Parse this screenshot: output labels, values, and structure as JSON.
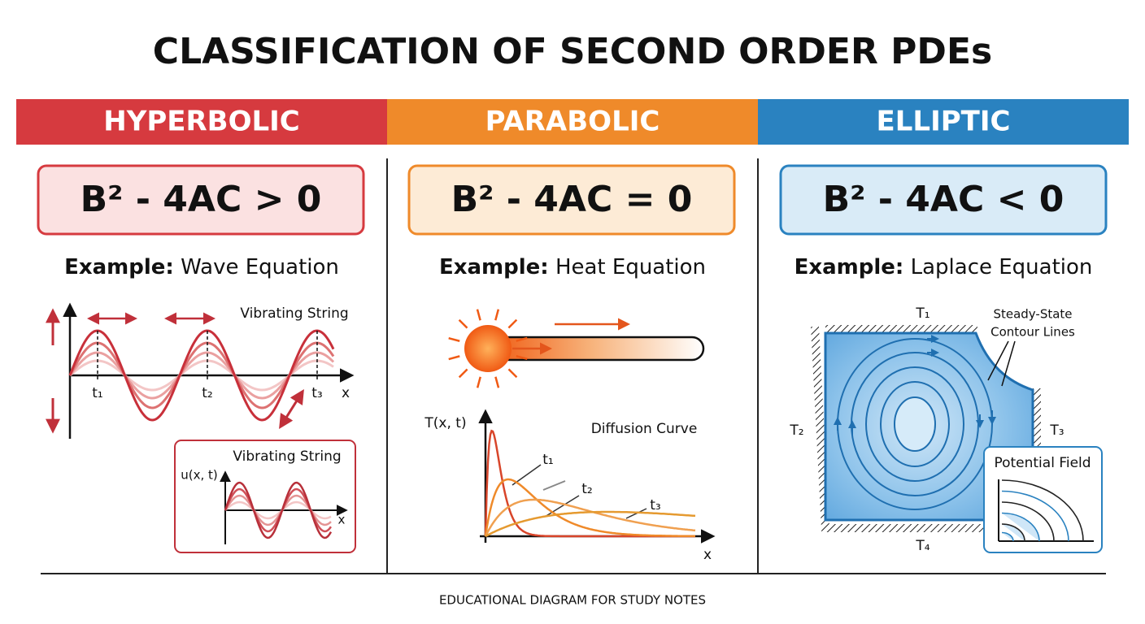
{
  "title": "CLASSIFICATION OF SECOND ORDER PDEs",
  "panels": [
    {
      "heading": "HYPERBOLIC",
      "color": "#d63a3f",
      "condition": "B² - 4AC > 0",
      "example": {
        "label": "Example:",
        "name": "Wave Equation"
      },
      "caption": "Vibrating String",
      "times": [
        "t₁",
        "t₂",
        "t₃"
      ],
      "x_axis": "x",
      "inset": {
        "title": "Vibrating String",
        "y_axis": "u(x, t)",
        "x_axis": "x"
      }
    },
    {
      "heading": "PARABOLIC",
      "color": "#ef8a2a",
      "condition": "B² - 4AC = 0",
      "example": {
        "label": "Example:",
        "name": "Heat Equation"
      },
      "caption": "Diffusion Curve",
      "y_axis": "T(x, t)",
      "times": [
        "t₁",
        "t₂",
        "t₃"
      ],
      "x_axis": "x"
    },
    {
      "heading": "ELLIPTIC",
      "color": "#2a82c0",
      "condition": "B² - 4AC < 0",
      "example": {
        "label": "Example:",
        "name": "Laplace Equation"
      },
      "boundaries": [
        "T₁",
        "T₂",
        "T₃",
        "T₄"
      ],
      "caption": [
        "Steady-State",
        "Contour Lines"
      ],
      "inset": {
        "title": "Potential Field"
      }
    }
  ],
  "footer": "EDUCATIONAL DIAGRAM FOR STUDY NOTES"
}
